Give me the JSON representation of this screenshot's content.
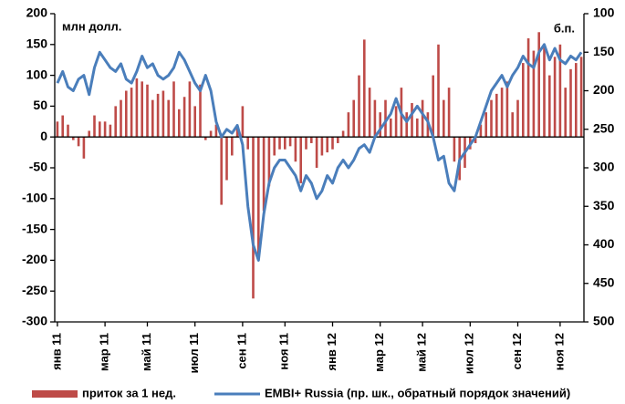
{
  "chart_data": {
    "type": "bar_line",
    "unit_label": "млн долл.",
    "unit_label_right": "б.п.",
    "categories": [
      "янв 11",
      null,
      null,
      null,
      null,
      null,
      null,
      null,
      null,
      "мар 11",
      null,
      null,
      null,
      null,
      null,
      null,
      null,
      "май 11",
      null,
      null,
      null,
      null,
      null,
      null,
      null,
      null,
      "июл 11",
      null,
      null,
      null,
      null,
      null,
      null,
      null,
      null,
      "сен 11",
      null,
      null,
      null,
      null,
      null,
      null,
      null,
      "ноя 11",
      null,
      null,
      null,
      null,
      null,
      null,
      null,
      null,
      "янв 12",
      null,
      null,
      null,
      null,
      null,
      null,
      null,
      null,
      "мар 12",
      null,
      null,
      null,
      null,
      null,
      null,
      null,
      "май 12",
      null,
      null,
      null,
      null,
      null,
      null,
      null,
      null,
      "июл 12",
      null,
      null,
      null,
      null,
      null,
      null,
      null,
      null,
      "сен 12",
      null,
      null,
      null,
      null,
      null,
      null,
      null,
      "ноя 12",
      null,
      null,
      null,
      null
    ],
    "series": [
      {
        "name": "приток за 1 нед.",
        "color": "#be4b48",
        "values": [
          25,
          35,
          20,
          -5,
          -15,
          -35,
          10,
          35,
          25,
          25,
          20,
          50,
          60,
          75,
          80,
          95,
          90,
          85,
          60,
          70,
          75,
          60,
          90,
          45,
          65,
          90,
          50,
          85,
          -5,
          10,
          20,
          -110,
          -70,
          -30,
          20,
          50,
          -20,
          -262,
          -200,
          -120,
          -80,
          -30,
          -20,
          -20,
          -15,
          -40,
          -75,
          -20,
          -10,
          -50,
          -30,
          -25,
          -20,
          -10,
          10,
          40,
          60,
          100,
          158,
          80,
          60,
          40,
          60,
          30,
          50,
          80,
          40,
          55,
          30,
          60,
          40,
          100,
          150,
          60,
          80,
          -40,
          -70,
          -50,
          -20,
          -10,
          20,
          40,
          60,
          70,
          80,
          90,
          40,
          60,
          120,
          160,
          140,
          170,
          150,
          100,
          130,
          150,
          80,
          110,
          120,
          130
        ]
      },
      {
        "name": "EMBI+ Russia (пр. шк., обратный порядок значений)",
        "color": "#4a7ebb",
        "axis": "y2",
        "values": [
          190,
          175,
          195,
          200,
          185,
          180,
          205,
          170,
          150,
          160,
          170,
          175,
          165,
          185,
          190,
          175,
          155,
          170,
          165,
          180,
          185,
          180,
          170,
          150,
          160,
          175,
          190,
          200,
          180,
          200,
          240,
          260,
          250,
          255,
          245,
          270,
          350,
          400,
          420,
          360,
          320,
          300,
          290,
          290,
          300,
          310,
          330,
          310,
          320,
          340,
          330,
          310,
          320,
          300,
          290,
          300,
          290,
          275,
          270,
          280,
          260,
          250,
          240,
          230,
          210,
          230,
          240,
          230,
          220,
          230,
          240,
          260,
          290,
          285,
          320,
          330,
          290,
          280,
          270,
          260,
          240,
          220,
          200,
          190,
          180,
          195,
          180,
          170,
          155,
          165,
          170,
          150,
          140,
          160,
          145,
          160,
          165,
          155,
          160,
          150
        ]
      }
    ],
    "ylim": [
      -300,
      200
    ],
    "yticks": [
      -300,
      -250,
      -200,
      -150,
      -100,
      -50,
      0,
      50,
      100,
      150,
      200
    ],
    "y2lim": [
      500,
      100
    ],
    "y2ticks": [
      500,
      450,
      400,
      350,
      300,
      250,
      200,
      150,
      100
    ]
  }
}
